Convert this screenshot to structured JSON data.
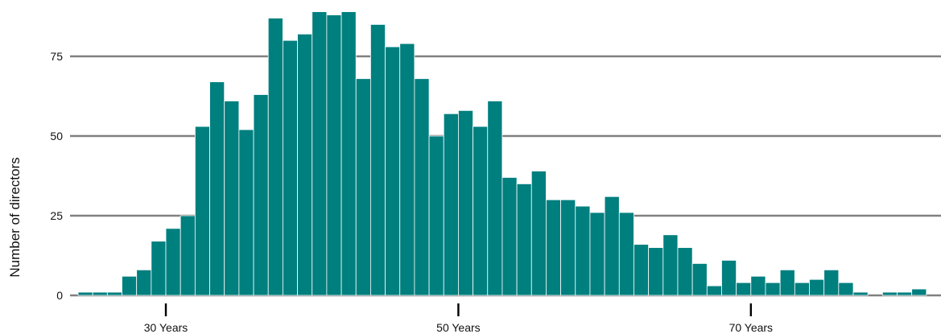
{
  "chart_data": {
    "type": "bar",
    "ylabel": "Number of directors",
    "xlabel": "",
    "x_start_age": 24,
    "bin_width_years": 1,
    "xlim": [
      24,
      83
    ],
    "ylim": [
      0,
      90
    ],
    "y_ticks": [
      0,
      25,
      50,
      75
    ],
    "x_ticks": [
      {
        "age": 30,
        "label": "30 Years"
      },
      {
        "age": 50,
        "label": "50 Years"
      },
      {
        "age": 70,
        "label": "70 Years"
      }
    ],
    "values": [
      1,
      1,
      1,
      6,
      8,
      17,
      21,
      25,
      53,
      67,
      61,
      52,
      63,
      87,
      80,
      82,
      89,
      88,
      89,
      68,
      85,
      78,
      79,
      68,
      50,
      57,
      58,
      53,
      61,
      37,
      35,
      39,
      30,
      30,
      28,
      26,
      31,
      26,
      16,
      15,
      19,
      15,
      10,
      3,
      11,
      4,
      6,
      4,
      8,
      4,
      5,
      8,
      4,
      1,
      0,
      1,
      1,
      2
    ],
    "grid": true,
    "bar_color": "#007f7f",
    "grid_color": "#808080",
    "axis_color": "#000000"
  }
}
